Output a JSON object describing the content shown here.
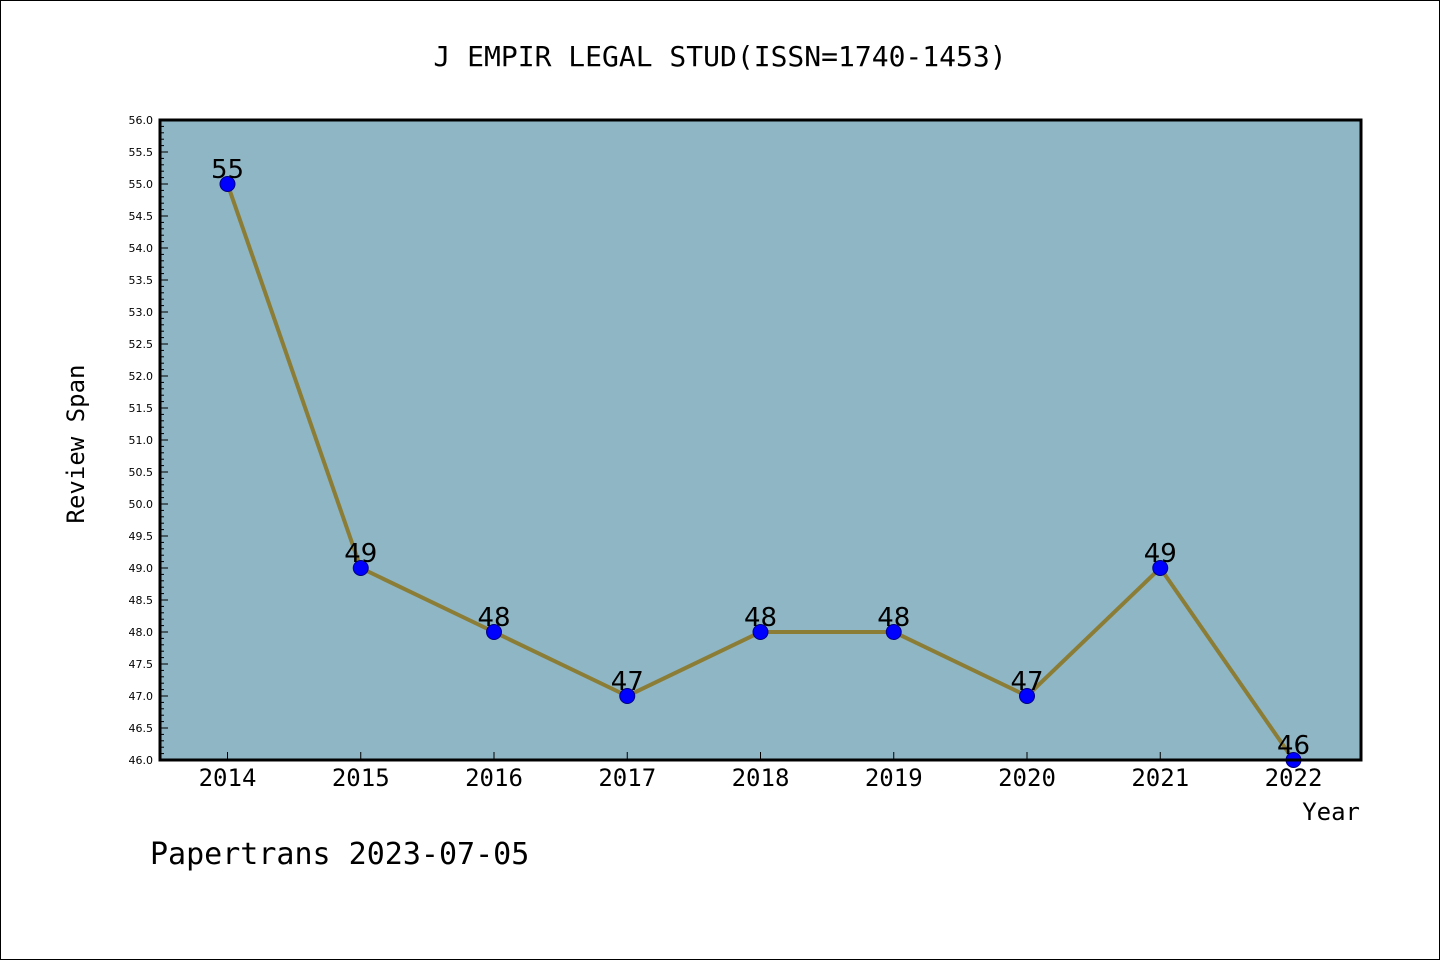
{
  "chart_data": {
    "type": "line",
    "title": "J EMPIR LEGAL STUD(ISSN=1740-1453)",
    "xlabel": "Year",
    "ylabel": "Review Span",
    "categories": [
      "2014",
      "2015",
      "2016",
      "2017",
      "2018",
      "2019",
      "2020",
      "2021",
      "2022"
    ],
    "values": [
      55,
      49,
      48,
      47,
      48,
      48,
      47,
      49,
      46
    ],
    "data_labels": [
      "55",
      "49",
      "48",
      "47",
      "48",
      "48",
      "47",
      "49",
      "46"
    ],
    "ylim": [
      46.0,
      56.0
    ],
    "y_ticks": [
      "46.0",
      "46.5",
      "47.0",
      "47.5",
      "48.0",
      "48.5",
      "49.0",
      "49.5",
      "50.0",
      "50.5",
      "51.0",
      "51.5",
      "52.0",
      "52.5",
      "53.0",
      "53.5",
      "54.0",
      "54.5",
      "55.0",
      "55.5",
      "56.0"
    ],
    "grid": false,
    "colors": {
      "plot_background": "#8fb6c5",
      "line": "#8b7d35",
      "marker": "#0000ff"
    }
  },
  "footer": "Papertrans 2023-07-05"
}
